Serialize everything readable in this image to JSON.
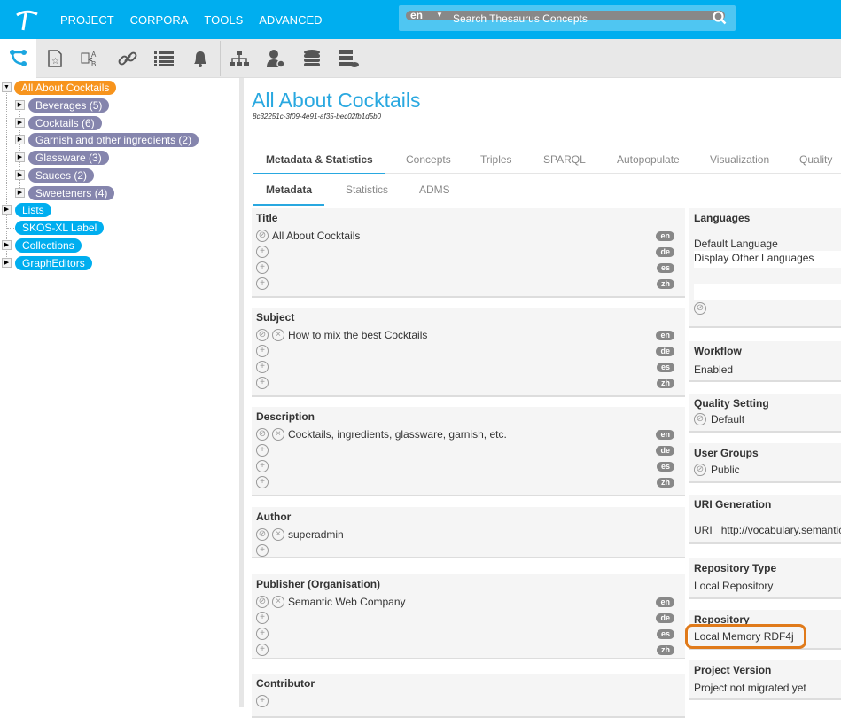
{
  "nav": {
    "items": [
      "PROJECT",
      "CORPORA",
      "TOOLS",
      "ADVANCED"
    ]
  },
  "search": {
    "lang": "en",
    "placeholder": "Search Thesaurus Concepts"
  },
  "toolbar": {
    "icons": [
      "hierarchy-tree-icon",
      "document-star-icon",
      "document-compare-icon",
      "link-icon",
      "list-icon",
      "bell-icon",
      "org-chart-icon",
      "user-settings-icon",
      "database-icon",
      "server-cloud-icon"
    ]
  },
  "tree": {
    "root": "All About Cocktails",
    "children": [
      "Beverages (5)",
      "Cocktails (6)",
      "Garnish and other ingredients (2)",
      "Glassware (3)",
      "Sauces (2)",
      "Sweeteners (4)"
    ],
    "other": [
      "Lists",
      "SKOS-XL Label",
      "Collections",
      "GraphEditors"
    ],
    "colors": {
      "root": "#f7941d",
      "child": "#8585ad",
      "other": "#00aeef"
    }
  },
  "page": {
    "title": "All About Cocktails",
    "uuid": "8c32251c-3f09-4e91-af35-bec02fb1d5b0"
  },
  "tabs": [
    "Metadata & Statistics",
    "Concepts",
    "Triples",
    "SPARQL",
    "Autopopulate",
    "Visualization",
    "Quality M"
  ],
  "subtabs": [
    "Metadata",
    "Statistics",
    "ADMS"
  ],
  "sections": {
    "title": {
      "label": "Title",
      "value": "All About Cocktails"
    },
    "subject": {
      "label": "Subject",
      "value": "How to mix the best Cocktails"
    },
    "description": {
      "label": "Description",
      "value": "Cocktails, ingredients, glassware, garnish, etc."
    },
    "author": {
      "label": "Author",
      "value": "superadmin"
    },
    "publisher": {
      "label": "Publisher (Organisation)",
      "value": "Semantic Web Company"
    },
    "contributor": {
      "label": "Contributor"
    },
    "langs": [
      "en",
      "de",
      "es",
      "zh"
    ]
  },
  "right": {
    "languages": {
      "label": "Languages",
      "default": "Default Language",
      "other": "Display Other Languages"
    },
    "workflow": {
      "label": "Workflow",
      "value": "Enabled"
    },
    "quality": {
      "label": "Quality Setting",
      "value": "Default"
    },
    "groups": {
      "label": "User Groups",
      "value": "Public"
    },
    "uri": {
      "label": "URI Generation",
      "key": "URI",
      "value": "http://vocabulary.semantic"
    },
    "repotype": {
      "label": "Repository Type",
      "value": "Local Repository"
    },
    "repo": {
      "label": "Repository",
      "value": "Local Memory RDF4j"
    },
    "version": {
      "label": "Project Version",
      "value": "Project not migrated yet"
    }
  }
}
